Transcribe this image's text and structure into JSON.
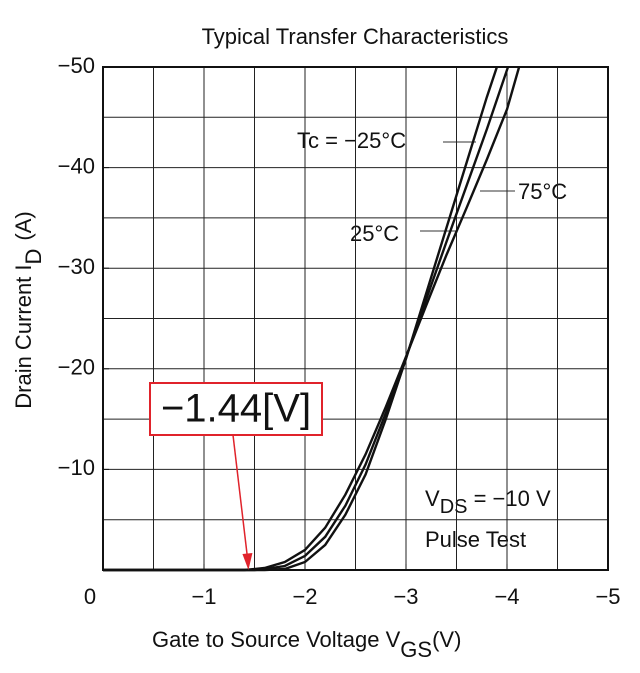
{
  "chart_data": {
    "type": "line",
    "title": "Typical Transfer Characteristics",
    "xlabel": {
      "text": "Gate to Source Voltage  V",
      "sub": "GS",
      "unit": "(V)"
    },
    "ylabel": {
      "text": "Drain Current  I",
      "sub": "D",
      "unit": "(A)"
    },
    "xlim": [
      0,
      -5
    ],
    "ylim": [
      0,
      -50
    ],
    "xticks": [
      0,
      {
        "value": -1,
        "label": "−1"
      },
      {
        "value": -2,
        "label": "−2"
      },
      {
        "value": -3,
        "label": "−3"
      },
      {
        "value": -4,
        "label": "−4"
      },
      {
        "value": -5,
        "label": "−5"
      }
    ],
    "yticks": [
      {
        "value": -10,
        "label": "−10"
      },
      {
        "value": -20,
        "label": "−20"
      },
      {
        "value": -30,
        "label": "−30"
      },
      {
        "value": -40,
        "label": "−40"
      },
      {
        "value": -50,
        "label": "−50"
      }
    ],
    "xgrid": [
      -0.5,
      -1,
      -1.5,
      -2,
      -2.5,
      -3,
      -3.5,
      -4,
      -4.5
    ],
    "ygrid": [
      -5,
      -10,
      -15,
      -20,
      -25,
      -30,
      -35,
      -40,
      -45
    ],
    "grid": true,
    "color": "#111111",
    "series": [
      {
        "name": "Tc = −25°C",
        "x": [
          0,
          -1.6,
          -1.8,
          -2.0,
          -2.2,
          -2.4,
          -2.6,
          -2.8,
          -3.0,
          -3.2,
          -3.4,
          -3.6,
          -3.8,
          -3.9
        ],
        "values": [
          0,
          0,
          -0.1,
          -0.8,
          -2.5,
          -5.5,
          -9.5,
          -15,
          -21,
          -27.5,
          -34,
          -40.5,
          -47,
          -50
        ]
      },
      {
        "name": "75°C",
        "x": [
          0,
          -1.4,
          -1.6,
          -1.8,
          -2.0,
          -2.2,
          -2.4,
          -2.6,
          -2.8,
          -3.0,
          -3.2,
          -3.4,
          -3.6,
          -3.8,
          -4.0,
          -4.12
        ],
        "values": [
          0,
          0,
          -0.2,
          -0.8,
          -2.0,
          -4.2,
          -7.5,
          -11.5,
          -16.2,
          -21.2,
          -26.3,
          -31.3,
          -36,
          -40.8,
          -45.8,
          -50
        ]
      },
      {
        "name": "25°C",
        "x": [
          0,
          -1.5,
          -1.6,
          -1.8,
          -2.0,
          -2.2,
          -2.4,
          -2.6,
          -2.8,
          -3.0,
          -3.2,
          -3.4,
          -3.6,
          -3.8,
          -4.01
        ],
        "values": [
          0,
          0,
          -0.1,
          -0.4,
          -1.4,
          -3.3,
          -6.4,
          -10.5,
          -15.6,
          -21.1,
          -26.9,
          -32.6,
          -38.2,
          -43.8,
          -50
        ]
      }
    ],
    "conditions": {
      "text": "V",
      "sub": "DS",
      "rest": " = −10 V",
      "line2": "Pulse Test"
    },
    "marker": {
      "label": "−1.44[V]",
      "x": -1.44,
      "color": "#e0232b"
    }
  }
}
